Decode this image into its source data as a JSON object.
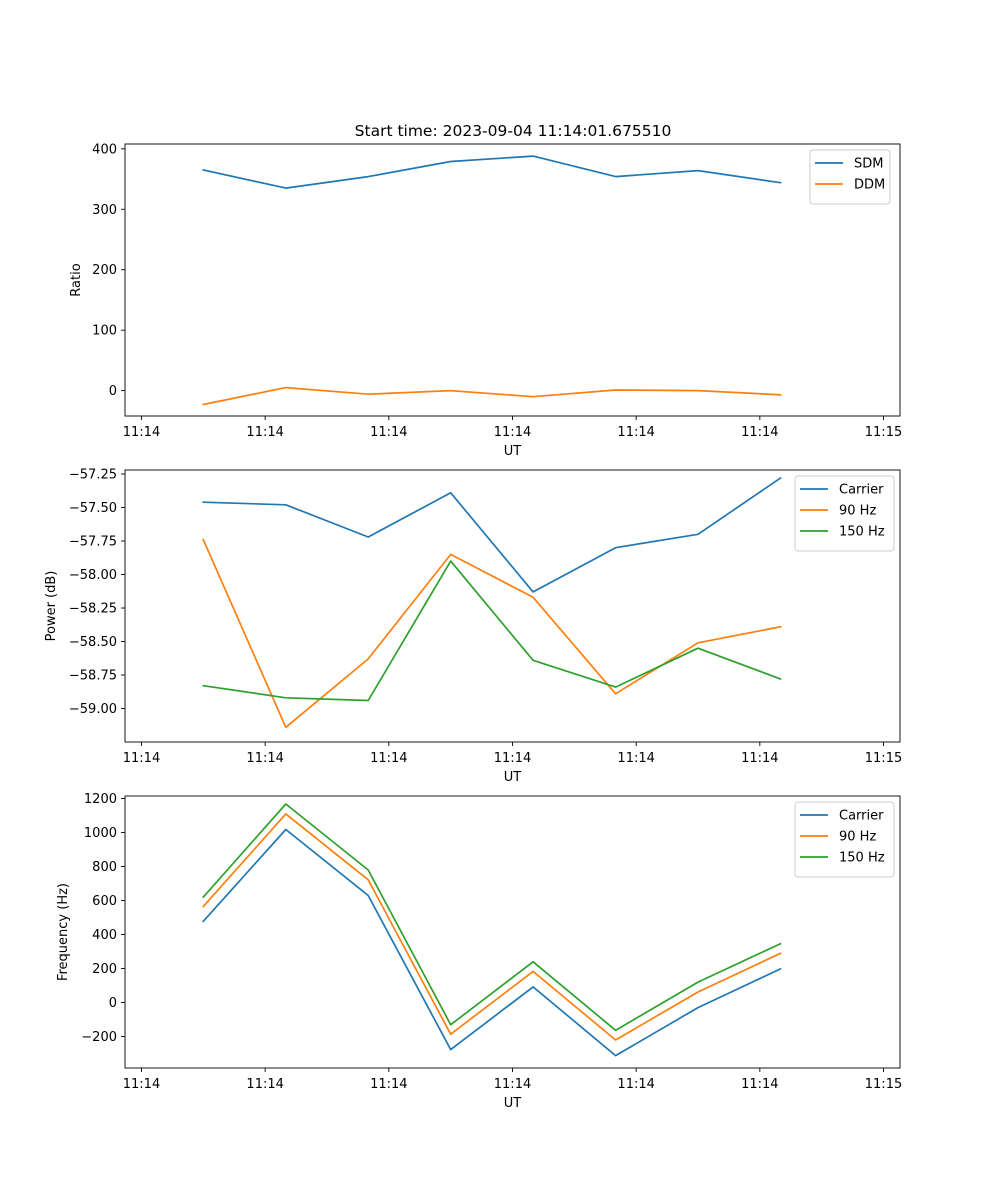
{
  "chart_data": [
    {
      "type": "line",
      "title": "Start time: 2023-09-04 11:14:01.675510",
      "xlabel": "UT",
      "ylabel": "Ratio",
      "xlim": [
        -0.2,
        9.2
      ],
      "ylim": [
        -42,
        408
      ],
      "x": [
        0.75,
        1.75,
        2.75,
        3.75,
        4.75,
        5.75,
        6.75,
        7.75
      ],
      "xticks": [
        0,
        1.5,
        3,
        4.5,
        6,
        7.5,
        9
      ],
      "xtick_labels": [
        "11:14",
        "11:14",
        "11:14",
        "11:14",
        "11:14",
        "11:14",
        "11:15"
      ],
      "yticks": [
        0,
        100,
        200,
        300,
        400
      ],
      "ytick_labels": [
        "0",
        "100",
        "200",
        "300",
        "400"
      ],
      "legend_position": "upper right",
      "series": [
        {
          "name": "SDM",
          "color": "#1f77b4",
          "values": [
            365,
            335,
            354,
            379,
            388,
            354,
            364,
            344
          ]
        },
        {
          "name": "DDM",
          "color": "#ff7f0e",
          "values": [
            -23,
            5,
            -6,
            0,
            -10,
            1,
            0,
            -7
          ]
        }
      ]
    },
    {
      "type": "line",
      "title": "",
      "xlabel": "UT",
      "ylabel": "Power (dB)",
      "xlim": [
        -0.2,
        9.2
      ],
      "ylim": [
        -59.25,
        -57.22
      ],
      "x": [
        0.75,
        1.75,
        2.75,
        3.75,
        4.75,
        5.75,
        6.75,
        7.75
      ],
      "xticks": [
        0,
        1.5,
        3,
        4.5,
        6,
        7.5,
        9
      ],
      "xtick_labels": [
        "11:14",
        "11:14",
        "11:14",
        "11:14",
        "11:14",
        "11:14",
        "11:15"
      ],
      "yticks": [
        -59.0,
        -58.75,
        -58.5,
        -58.25,
        -58.0,
        -57.75,
        -57.5,
        -57.25
      ],
      "ytick_labels": [
        "−59.00",
        "−58.75",
        "−58.50",
        "−58.25",
        "−58.00",
        "−57.75",
        "−57.50",
        "−57.25"
      ],
      "legend_position": "upper right",
      "series": [
        {
          "name": "Carrier",
          "color": "#1f77b4",
          "values": [
            -57.46,
            -57.48,
            -57.72,
            -57.39,
            -58.13,
            -57.8,
            -57.7,
            -57.28
          ]
        },
        {
          "name": "90 Hz",
          "color": "#ff7f0e",
          "values": [
            -57.74,
            -59.14,
            -58.63,
            -57.85,
            -58.17,
            -58.89,
            -58.51,
            -58.39
          ]
        },
        {
          "name": "150 Hz",
          "color": "#2ca02c",
          "values": [
            -58.83,
            -58.92,
            -58.94,
            -57.9,
            -58.64,
            -58.84,
            -58.55,
            -58.78
          ]
        }
      ]
    },
    {
      "type": "line",
      "title": "",
      "xlabel": "UT",
      "ylabel": "Frequency (Hz)",
      "xlim": [
        -0.2,
        9.2
      ],
      "ylim": [
        -385,
        1215
      ],
      "x": [
        0.75,
        1.75,
        2.75,
        3.75,
        4.75,
        5.75,
        6.75,
        7.75
      ],
      "xticks": [
        0,
        1.5,
        3,
        4.5,
        6,
        7.5,
        9
      ],
      "xtick_labels": [
        "11:14",
        "11:14",
        "11:14",
        "11:14",
        "11:14",
        "11:14",
        "11:15"
      ],
      "yticks": [
        -200,
        0,
        200,
        400,
        600,
        800,
        1000,
        1200
      ],
      "ytick_labels": [
        "−200",
        "0",
        "200",
        "400",
        "600",
        "800",
        "1000",
        "1200"
      ],
      "legend_position": "upper right",
      "series": [
        {
          "name": "Carrier",
          "color": "#1f77b4",
          "values": [
            478,
            1018,
            630,
            -277,
            92,
            -312,
            -30,
            198
          ]
        },
        {
          "name": "90 Hz",
          "color": "#ff7f0e",
          "values": [
            565,
            1110,
            722,
            -186,
            183,
            -220,
            62,
            290
          ]
        },
        {
          "name": "150 Hz",
          "color": "#2ca02c",
          "values": [
            620,
            1168,
            780,
            -130,
            240,
            -163,
            120,
            346
          ]
        }
      ]
    }
  ]
}
